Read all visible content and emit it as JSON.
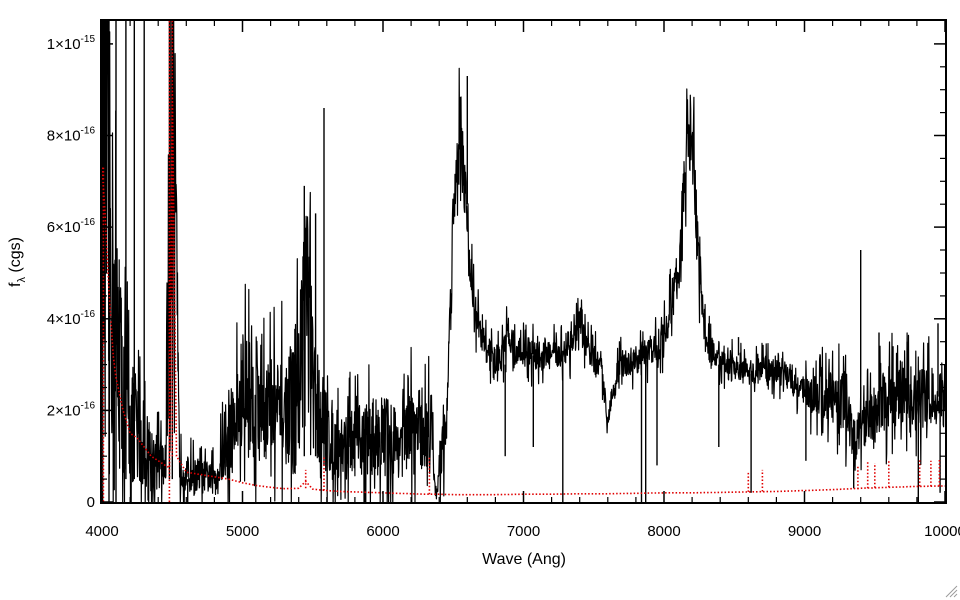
{
  "chart_data": {
    "type": "line",
    "xlabel": "Wave (Ang)",
    "ylabel": {
      "base": "f",
      "subscript": "λ",
      "unit": " (cgs)"
    },
    "xlim": [
      4000,
      10000
    ],
    "ylim": [
      0,
      1.05e-15
    ],
    "x_ticks": [
      {
        "value": 4000,
        "label": "4000"
      },
      {
        "value": 5000,
        "label": "5000"
      },
      {
        "value": 6000,
        "label": "6000"
      },
      {
        "value": 7000,
        "label": "7000"
      },
      {
        "value": 8000,
        "label": "8000"
      },
      {
        "value": 9000,
        "label": "9000"
      },
      {
        "value": 10000,
        "label": "10000"
      }
    ],
    "y_ticks": [
      {
        "value": 0,
        "mant": "0",
        "exp": ""
      },
      {
        "value": 2e-16,
        "mant": "2×10",
        "exp": "-16"
      },
      {
        "value": 4e-16,
        "mant": "4×10",
        "exp": "-16"
      },
      {
        "value": 6e-16,
        "mant": "6×10",
        "exp": "-16"
      },
      {
        "value": 8e-16,
        "mant": "8×10",
        "exp": "-16"
      },
      {
        "value": 1e-15,
        "mant": "1×10",
        "exp": "-15"
      }
    ],
    "grid": false,
    "series": [
      {
        "style": "solid",
        "color": "#000000",
        "points": [
          [
            4000,
            9.5e-16
          ],
          [
            4050,
            6e-16
          ],
          [
            4100,
            3.5e-16
          ],
          [
            4150,
            2.4e-16
          ],
          [
            4200,
            1.8e-16
          ],
          [
            4250,
            1.5e-16
          ],
          [
            4300,
            1.2e-16
          ],
          [
            4350,
            1e-16
          ],
          [
            4400,
            8.5e-17
          ],
          [
            4450,
            7.5e-17
          ],
          [
            4500,
            9e-16
          ],
          [
            4550,
            1e-16
          ],
          [
            4600,
            6e-17
          ],
          [
            4700,
            5.5e-17
          ],
          [
            4800,
            5e-17
          ],
          [
            4900,
            1.3e-16
          ],
          [
            5000,
            2.3e-16
          ],
          [
            5100,
            2.5e-16
          ],
          [
            5200,
            2e-16
          ],
          [
            5300,
            1.9e-16
          ],
          [
            5400,
            2.5e-16
          ],
          [
            5450,
            5e-16
          ],
          [
            5500,
            2.5e-16
          ],
          [
            5600,
            1.5e-16
          ],
          [
            5700,
            1.2e-16
          ],
          [
            5800,
            1.3e-16
          ],
          [
            5900,
            1.4e-16
          ],
          [
            6000,
            1.5e-16
          ],
          [
            6100,
            1.3e-16
          ],
          [
            6200,
            1.5e-16
          ],
          [
            6300,
            1.6e-16
          ],
          [
            6350,
            1.5e-16
          ],
          [
            6380,
            1e-17
          ],
          [
            6400,
            8e-17
          ],
          [
            6450,
            1.6e-16
          ],
          [
            6500,
            6.4e-16
          ],
          [
            6550,
            8.5e-16
          ],
          [
            6600,
            6e-16
          ],
          [
            6650,
            4.2e-16
          ],
          [
            6700,
            3.6e-16
          ],
          [
            6750,
            3.3e-16
          ],
          [
            6800,
            3.1e-16
          ],
          [
            6850,
            3.2e-16
          ],
          [
            6900,
            3.7e-16
          ],
          [
            6950,
            3.2e-16
          ],
          [
            7000,
            3.3e-16
          ],
          [
            7100,
            3.2e-16
          ],
          [
            7200,
            3.2e-16
          ],
          [
            7300,
            3.3e-16
          ],
          [
            7350,
            3.5e-16
          ],
          [
            7400,
            3.8e-16
          ],
          [
            7450,
            3.4e-16
          ],
          [
            7500,
            3.1e-16
          ],
          [
            7550,
            3e-16
          ],
          [
            7600,
            1.8e-16
          ],
          [
            7650,
            2.7e-16
          ],
          [
            7700,
            3e-16
          ],
          [
            7800,
            3.1e-16
          ],
          [
            7900,
            3.3e-16
          ],
          [
            8000,
            3.6e-16
          ],
          [
            8100,
            5e-16
          ],
          [
            8150,
            7.2e-16
          ],
          [
            8200,
            8.2e-16
          ],
          [
            8250,
            5e-16
          ],
          [
            8300,
            3.5e-16
          ],
          [
            8400,
            3e-16
          ],
          [
            8500,
            2.9e-16
          ],
          [
            8600,
            2.8e-16
          ],
          [
            8700,
            2.9e-16
          ],
          [
            8800,
            2.9e-16
          ],
          [
            8900,
            2.7e-16
          ],
          [
            9000,
            2.4e-16
          ],
          [
            9100,
            2.3e-16
          ],
          [
            9200,
            2.3e-16
          ],
          [
            9300,
            2.2e-16
          ],
          [
            9350,
            1.2e-16
          ],
          [
            9400,
            1.6e-16
          ],
          [
            9500,
            2e-16
          ],
          [
            9600,
            2.3e-16
          ],
          [
            9700,
            2.4e-16
          ],
          [
            9800,
            2.2e-16
          ],
          [
            9900,
            2.3e-16
          ],
          [
            10000,
            2.4e-16
          ]
        ],
        "noise_fraction": [
          [
            4000,
            0.8
          ],
          [
            4550,
            0.7
          ],
          [
            4900,
            0.6
          ],
          [
            6420,
            0.6
          ],
          [
            6460,
            0.1
          ],
          [
            8900,
            0.1
          ],
          [
            9300,
            0.3
          ],
          [
            10000,
            0.3
          ]
        ],
        "spikes": [
          [
            4050,
            1.05e-15,
            0
          ],
          [
            4100,
            1.05e-15,
            0
          ],
          [
            4170,
            1.05e-15,
            5e-17
          ],
          [
            4230,
            1.05e-15,
            5e-17
          ],
          [
            4300,
            1.05e-15,
            5e-17
          ],
          [
            4480,
            1.05e-15,
            5e-17
          ],
          [
            4500,
            1.05e-15,
            5e-17
          ],
          [
            4610,
            5e-17,
            0
          ],
          [
            4640,
            0,
            0
          ],
          [
            5520,
            6.3e-16,
            1e-16
          ],
          [
            5580,
            8.6e-16,
            8e-17
          ],
          [
            5440,
            6.9e-16,
            1e-16
          ],
          [
            6420,
            0,
            0
          ],
          [
            6600,
            9.3e-16,
            6.5e-16
          ],
          [
            6870,
            1e-16,
            3e-16
          ],
          [
            7070,
            1.2e-16,
            3.2e-16
          ],
          [
            7280,
            0,
            3.3e-16
          ],
          [
            7840,
            0,
            3.1e-16
          ],
          [
            7870,
            0,
            3.1e-16
          ],
          [
            7950,
            8e-17,
            3.3e-16
          ],
          [
            8390,
            1.2e-16,
            3e-16
          ],
          [
            8530,
            3.2e-16,
            3.6e-16
          ],
          [
            8620,
            2e-17,
            2.8e-16
          ],
          [
            9010,
            9e-17,
            2.4e-16
          ],
          [
            9350,
            3e-17,
            1.8e-16
          ],
          [
            9400,
            5.5e-16,
            1.6e-16
          ],
          [
            9530,
            3.7e-16,
            2e-16
          ],
          [
            9630,
            3.4e-16,
            2.3e-16
          ],
          [
            9730,
            3.5e-16,
            2.4e-16
          ],
          [
            9810,
            0,
            2.2e-16
          ],
          [
            9950,
            3.9e-16,
            2.3e-16
          ],
          [
            9965,
            2e-17,
            2.3e-16
          ]
        ]
      },
      {
        "style": "dotted",
        "color": "#e00000",
        "points": [
          [
            4000,
            7.3e-16
          ],
          [
            4020,
            6.4e-16
          ],
          [
            4050,
            4.6e-16
          ],
          [
            4080,
            3.2e-16
          ],
          [
            4100,
            2.7e-16
          ],
          [
            4150,
            2e-16
          ],
          [
            4200,
            1.5e-16
          ],
          [
            4250,
            1.4e-16
          ],
          [
            4300,
            1.2e-16
          ],
          [
            4350,
            1e-16
          ],
          [
            4400,
            9e-17
          ],
          [
            4450,
            8e-17
          ],
          [
            4480,
            7.5e-17
          ],
          [
            4500,
            9e-16
          ],
          [
            4530,
            1e-16
          ],
          [
            4600,
            6.5e-17
          ],
          [
            4700,
            6e-17
          ],
          [
            4800,
            5.5e-17
          ],
          [
            4900,
            5e-17
          ],
          [
            5000,
            4.2e-17
          ],
          [
            5100,
            3.6e-17
          ],
          [
            5200,
            3.2e-17
          ],
          [
            5300,
            2.9e-17
          ],
          [
            5400,
            3e-17
          ],
          [
            5450,
            4.5e-17
          ],
          [
            5500,
            2.8e-17
          ],
          [
            5600,
            2.5e-17
          ],
          [
            5700,
            2.3e-17
          ],
          [
            5800,
            2.2e-17
          ],
          [
            5900,
            2.1e-17
          ],
          [
            6000,
            2e-17
          ],
          [
            6100,
            1.9e-17
          ],
          [
            6200,
            1.8e-17
          ],
          [
            6300,
            1.7e-17
          ],
          [
            6400,
            1.7e-17
          ],
          [
            6500,
            1.6e-17
          ],
          [
            6600,
            1.6e-17
          ],
          [
            6800,
            1.6e-17
          ],
          [
            7000,
            1.7e-17
          ],
          [
            7200,
            1.7e-17
          ],
          [
            7400,
            1.8e-17
          ],
          [
            7600,
            1.8e-17
          ],
          [
            7800,
            1.9e-17
          ],
          [
            8000,
            2e-17
          ],
          [
            8200,
            2e-17
          ],
          [
            8400,
            2.1e-17
          ],
          [
            8600,
            2.2e-17
          ],
          [
            8800,
            2.3e-17
          ],
          [
            9000,
            2.5e-17
          ],
          [
            9200,
            2.7e-17
          ],
          [
            9400,
            3e-17
          ],
          [
            9600,
            3.2e-17
          ],
          [
            9800,
            3.4e-17
          ],
          [
            10000,
            3.5e-17
          ]
        ],
        "spikes": [
          [
            4010,
            0,
            7.3e-16
          ],
          [
            4480,
            0,
            1.05e-15
          ],
          [
            4500,
            1.05e-15,
            1e-16
          ],
          [
            5450,
            7e-17,
            3e-17
          ],
          [
            5580,
            1e-16,
            2.5e-17
          ],
          [
            6330,
            1e-16,
            1.7e-17
          ],
          [
            8600,
            6.5e-17,
            2.2e-17
          ],
          [
            8700,
            7e-17,
            2.3e-17
          ],
          [
            9380,
            8e-17,
            2.8e-17
          ],
          [
            9450,
            9e-17,
            3e-17
          ],
          [
            9500,
            8.5e-17,
            3.1e-17
          ],
          [
            9600,
            9e-17,
            3.2e-17
          ],
          [
            9820,
            9.5e-17,
            3.4e-17
          ],
          [
            9900,
            9e-17,
            3.4e-17
          ],
          [
            9960,
            9.5e-17,
            3.5e-17
          ]
        ]
      }
    ]
  }
}
